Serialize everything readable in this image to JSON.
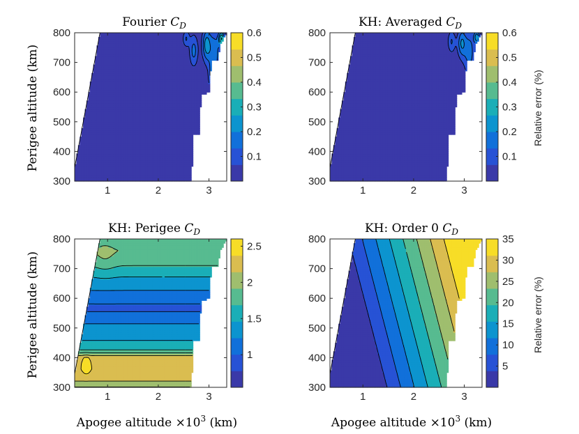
{
  "colors": {
    "parula": [
      "#352a87",
      "#3e47c9",
      "#0f5ce0",
      "#1283d4",
      "#06a4ca",
      "#2eb7a4",
      "#7fbf7b",
      "#bfbc60",
      "#f5be40",
      "#f9fb0e"
    ]
  },
  "chart_data": [
    {
      "id": "p1",
      "type": "contour",
      "title": "Fourier",
      "title_symbol": "C",
      "title_sub": "D",
      "xlabel": "",
      "ylabel": "Perigee altitude (km)",
      "xlim": [
        0.35,
        3.35
      ],
      "ylim": [
        300,
        800
      ],
      "xticks": [
        1,
        2,
        3
      ],
      "xtick_labels": [
        "1",
        "2",
        "3"
      ],
      "yticks": [
        300,
        400,
        500,
        600,
        700,
        800
      ],
      "ytick_labels": [
        "300",
        "400",
        "500",
        "600",
        "700",
        "800"
      ],
      "colorbar": {
        "ticks": [
          0.1,
          0.2,
          0.3,
          0.4,
          0.5,
          0.6
        ],
        "tick_labels": [
          "0.1",
          "0.2",
          "0.3",
          "0.4",
          "0.5",
          "0.6"
        ],
        "range": [
          0,
          0.6
        ],
        "label": ""
      },
      "base_level": 0.02,
      "features": [
        {
          "x": 3.1,
          "y": 730,
          "w": 0.12,
          "h": 80,
          "v": 0.16
        },
        {
          "x": 2.95,
          "y": 760,
          "w": 0.08,
          "h": 50,
          "v": 0.2
        },
        {
          "x": 3.25,
          "y": 780,
          "w": 0.06,
          "h": 25,
          "v": 0.3
        },
        {
          "x": 2.7,
          "y": 740,
          "w": 0.08,
          "h": 50,
          "v": 0.14
        },
        {
          "x": 2.55,
          "y": 780,
          "w": 0.06,
          "h": 25,
          "v": 0.12
        },
        {
          "x": 3.05,
          "y": 650,
          "w": 0.05,
          "h": 40,
          "v": 0.1
        }
      ]
    },
    {
      "id": "p2",
      "type": "contour",
      "title": "KH: Averaged",
      "title_symbol": "C",
      "title_sub": "D",
      "xlabel": "",
      "ylabel": "",
      "xlim": [
        0.35,
        3.35
      ],
      "ylim": [
        300,
        800
      ],
      "xticks": [
        1,
        2,
        3
      ],
      "xtick_labels": [
        "1",
        "2",
        "3"
      ],
      "yticks": [
        300,
        400,
        500,
        600,
        700,
        800
      ],
      "ytick_labels": [
        "300",
        "400",
        "500",
        "600",
        "700",
        "800"
      ],
      "colorbar": {
        "ticks": [
          0.1,
          0.2,
          0.3,
          0.4,
          0.5,
          0.6
        ],
        "tick_labels": [
          "0.1",
          "0.2",
          "0.3",
          "0.4",
          "0.5",
          "0.6"
        ],
        "range": [
          0,
          0.6
        ],
        "label": "Relative error (%)"
      },
      "base_level": 0.02,
      "features": [
        {
          "x": 3.1,
          "y": 735,
          "w": 0.11,
          "h": 70,
          "v": 0.15
        },
        {
          "x": 2.95,
          "y": 765,
          "w": 0.08,
          "h": 45,
          "v": 0.18
        },
        {
          "x": 3.25,
          "y": 785,
          "w": 0.06,
          "h": 22,
          "v": 0.22
        },
        {
          "x": 2.75,
          "y": 770,
          "w": 0.07,
          "h": 35,
          "v": 0.12
        }
      ]
    },
    {
      "id": "p3",
      "type": "contour",
      "title": "KH: Perigee",
      "title_symbol": "C",
      "title_sub": "D",
      "xlabel": "Apogee altitude ×10",
      "xlabel_sup": "3",
      "xlabel_unit": " (km)",
      "ylabel": "Perigee altitude (km)",
      "xlim": [
        0.35,
        3.35
      ],
      "ylim": [
        300,
        800
      ],
      "xticks": [
        1,
        2,
        3
      ],
      "xtick_labels": [
        "1",
        "2",
        "3"
      ],
      "yticks": [
        300,
        400,
        500,
        600,
        700,
        800
      ],
      "ytick_labels": [
        "300",
        "400",
        "500",
        "600",
        "700",
        "800"
      ],
      "colorbar": {
        "ticks": [
          1,
          1.5,
          2,
          2.5
        ],
        "tick_labels": [
          "1",
          "1.5",
          "2",
          "2.5"
        ],
        "range": [
          0.55,
          2.6
        ],
        "label": ""
      },
      "profile": [
        [
          300,
          1.9
        ],
        [
          330,
          2.25
        ],
        [
          360,
          2.35
        ],
        [
          400,
          2.3
        ],
        [
          430,
          1.6
        ],
        [
          460,
          1.45
        ],
        [
          500,
          1.35
        ],
        [
          530,
          1.1
        ],
        [
          570,
          0.95
        ],
        [
          600,
          1.1
        ],
        [
          640,
          1.3
        ],
        [
          680,
          1.5
        ],
        [
          720,
          1.75
        ],
        [
          760,
          1.9
        ],
        [
          800,
          1.75
        ]
      ],
      "features": [
        {
          "x": 0.58,
          "y": 375,
          "w": 0.07,
          "h": 25,
          "v": 0.3
        },
        {
          "x": 0.95,
          "y": 740,
          "w": 0.2,
          "h": 60,
          "v": 0.12
        }
      ]
    },
    {
      "id": "p4",
      "type": "contour",
      "title": "KH: Order 0",
      "title_symbol": "C",
      "title_sub": "D",
      "xlabel": "Apogee altitude ×10",
      "xlabel_sup": "3",
      "xlabel_unit": " (km)",
      "ylabel": "",
      "xlim": [
        0.35,
        3.35
      ],
      "ylim": [
        300,
        800
      ],
      "xticks": [
        1,
        2,
        3
      ],
      "xtick_labels": [
        "1",
        "2",
        "3"
      ],
      "yticks": [
        300,
        400,
        500,
        600,
        700,
        800
      ],
      "ytick_labels": [
        "300",
        "400",
        "500",
        "600",
        "700",
        "800"
      ],
      "colorbar": {
        "ticks": [
          5,
          10,
          15,
          20,
          25,
          30,
          35
        ],
        "tick_labels": [
          "5",
          "10",
          "15",
          "20",
          "25",
          "30",
          "35"
        ],
        "range": [
          0,
          35
        ],
        "label": "Relative error (%)"
      },
      "gradient": {
        "base": 0,
        "x_coef": 14.5,
        "y_coef": -0.022,
        "x0": 0.45,
        "y0": 800
      }
    }
  ],
  "domain_shape": {
    "left_edge": [
      [
        0.35,
        345
      ],
      [
        0.85,
        800
      ]
    ],
    "right_edge": [
      [
        2.65,
        300
      ],
      [
        2.7,
        460
      ],
      [
        2.8,
        460
      ],
      [
        2.85,
        590
      ],
      [
        3.0,
        600
      ],
      [
        3.05,
        705
      ],
      [
        3.18,
        705
      ],
      [
        3.22,
        760
      ],
      [
        3.35,
        800
      ]
    ]
  }
}
